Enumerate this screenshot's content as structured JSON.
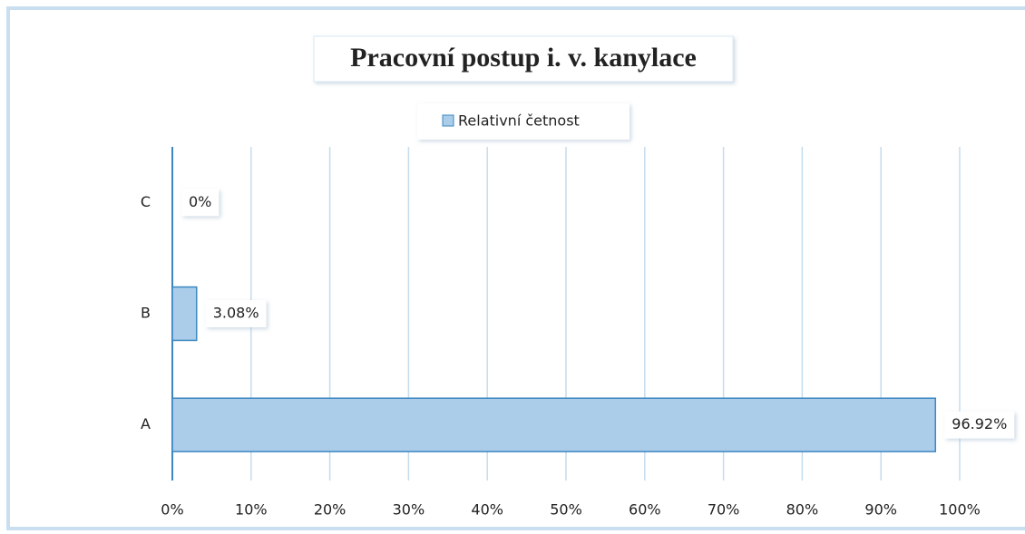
{
  "chart_data": {
    "type": "bar",
    "orientation": "horizontal",
    "title": "Pracovní postup i. v. kanylace",
    "categories": [
      "A",
      "B",
      "C"
    ],
    "series": [
      {
        "name": "Relativní četnost",
        "color": "#abcdea",
        "values": [
          96.92,
          3.08,
          0
        ],
        "value_labels": [
          "96.92%",
          "3.08%",
          "0%"
        ]
      }
    ],
    "xlim": [
      0,
      100
    ],
    "xticks": [
      {
        "value": 0,
        "label": "0%"
      },
      {
        "value": 10,
        "label": "10%"
      },
      {
        "value": 20,
        "label": "20%"
      },
      {
        "value": 30,
        "label": "30%"
      },
      {
        "value": 40,
        "label": "40%"
      },
      {
        "value": 50,
        "label": "50%"
      },
      {
        "value": 60,
        "label": "60%"
      },
      {
        "value": 70,
        "label": "70%"
      },
      {
        "value": 80,
        "label": "80%"
      },
      {
        "value": 90,
        "label": "90%"
      },
      {
        "value": 100,
        "label": "100%"
      }
    ],
    "grid": true,
    "legend": "top"
  }
}
